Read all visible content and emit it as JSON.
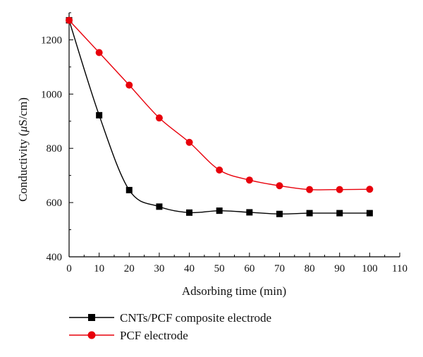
{
  "chart_data": {
    "type": "line",
    "xlabel": "Adsorbing time (min)",
    "ylabel_parts": [
      "Conductivity (",
      "μ",
      "S/cm)"
    ],
    "xlim": [
      0,
      110
    ],
    "ylim": [
      400,
      1300
    ],
    "xticks": [
      0,
      10,
      20,
      30,
      40,
      50,
      60,
      70,
      80,
      90,
      100,
      110
    ],
    "yticks": [
      400,
      600,
      800,
      1000,
      1200
    ],
    "grid": false,
    "legend_position": "bottom-left",
    "x": [
      0,
      10,
      20,
      30,
      40,
      50,
      60,
      70,
      80,
      90,
      100
    ],
    "series": [
      {
        "name": "CNTs/PCF composite electrode",
        "marker": "square",
        "color": "#000000",
        "values": [
          1272,
          922,
          646,
          585,
          563,
          570,
          564,
          558,
          561,
          561,
          561
        ]
      },
      {
        "name": "PCF electrode",
        "marker": "circle",
        "color": "#e8000b",
        "values": [
          1272,
          1153,
          1033,
          912,
          822,
          720,
          683,
          662,
          648,
          648,
          649
        ]
      }
    ]
  }
}
